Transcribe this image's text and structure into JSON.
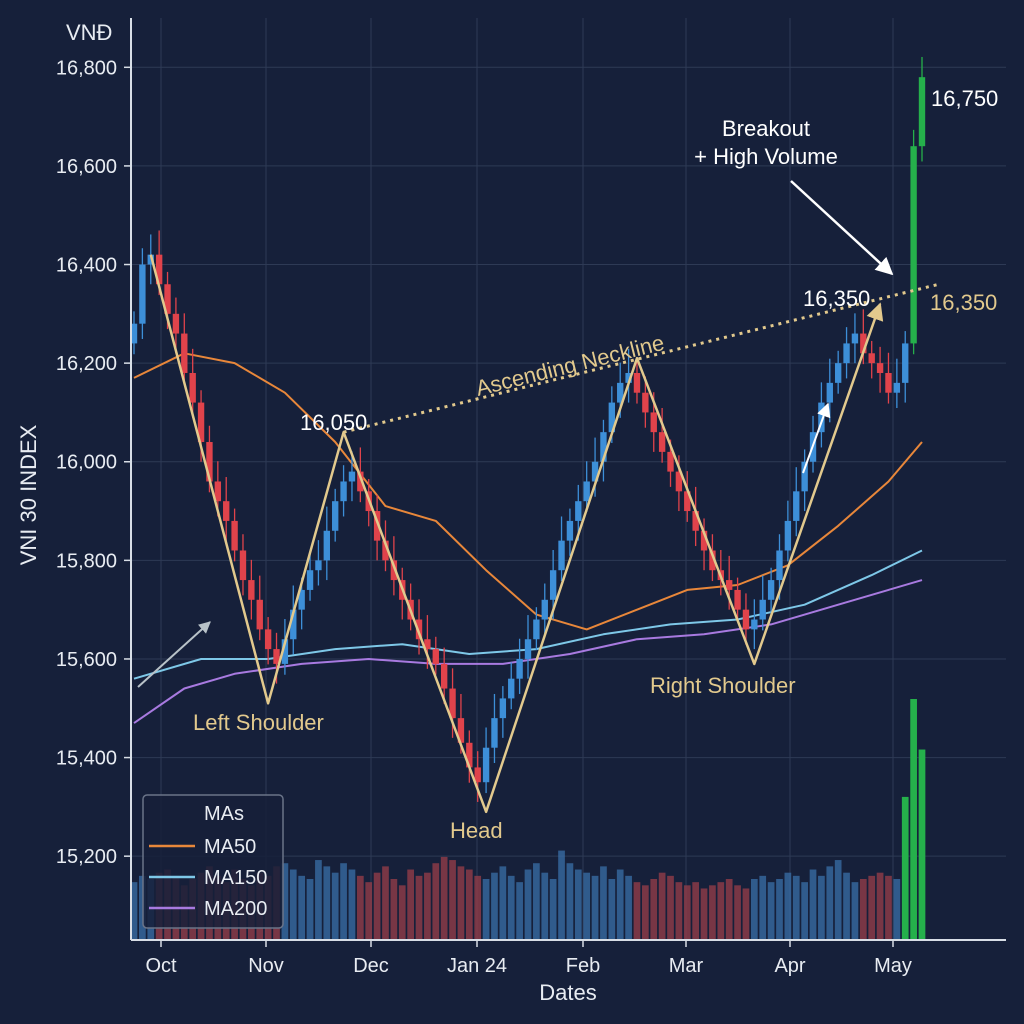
{
  "chart_data": {
    "type": "candlestick",
    "title": "",
    "ylabel": "VNI 30 INDEX",
    "yunit": "VNĐ",
    "xlabel": "Dates",
    "ylim": [
      15030,
      16900
    ],
    "yticks": [
      15200,
      15400,
      15600,
      15800,
      16000,
      16200,
      16400,
      16600,
      16800
    ],
    "ytick_labels": [
      "15,200",
      "15,400",
      "15,600",
      "15,800",
      "16,000",
      "16,200",
      "16,400",
      "16,600",
      "16,800"
    ],
    "xtick_labels": [
      "Oct",
      "Nov",
      "Dec",
      "Jan 24",
      "Feb",
      "Mar",
      "Apr",
      "May"
    ],
    "grid": true,
    "colors": {
      "up": "#3d8fd8",
      "down": "#e0434b",
      "breakout": "#25b04b",
      "pattern": "#e2c98d",
      "ma50": "#e8873a",
      "ma150": "#7ec8e8",
      "ma200": "#a87ae0"
    },
    "candles_close": [
      16280,
      16400,
      16420,
      16360,
      16300,
      16260,
      16180,
      16120,
      16040,
      15960,
      15920,
      15880,
      15820,
      15760,
      15720,
      15660,
      15620,
      15590,
      15640,
      15700,
      15740,
      15780,
      15800,
      15860,
      15920,
      15960,
      15980,
      15940,
      15900,
      15840,
      15800,
      15760,
      15720,
      15680,
      15640,
      15620,
      15590,
      15540,
      15480,
      15430,
      15380,
      15350,
      15420,
      15480,
      15520,
      15560,
      15600,
      15640,
      15680,
      15720,
      15780,
      15840,
      15880,
      15920,
      15960,
      16000,
      16060,
      16120,
      16160,
      16180,
      16140,
      16100,
      16060,
      16020,
      15980,
      15940,
      15900,
      15860,
      15820,
      15780,
      15760,
      15740,
      15700,
      15660,
      15680,
      15720,
      15760,
      15820,
      15880,
      15940,
      16000,
      16060,
      16120,
      16160,
      16200,
      16240,
      16260,
      16220,
      16200,
      16180,
      16140,
      16160,
      16240,
      16640,
      16780
    ],
    "ma50": {
      "name": "MA50",
      "points": [
        [
          0,
          16170
        ],
        [
          6,
          16220
        ],
        [
          12,
          16200
        ],
        [
          18,
          16140
        ],
        [
          24,
          16040
        ],
        [
          30,
          15910
        ],
        [
          36,
          15880
        ],
        [
          42,
          15780
        ],
        [
          48,
          15690
        ],
        [
          54,
          15660
        ],
        [
          60,
          15700
        ],
        [
          66,
          15740
        ],
        [
          72,
          15750
        ],
        [
          78,
          15790
        ],
        [
          84,
          15870
        ],
        [
          90,
          15960
        ],
        [
          94,
          16040
        ]
      ]
    },
    "ma150": {
      "name": "MA150",
      "points": [
        [
          0,
          15560
        ],
        [
          8,
          15600
        ],
        [
          16,
          15600
        ],
        [
          24,
          15620
        ],
        [
          32,
          15630
        ],
        [
          40,
          15610
        ],
        [
          48,
          15620
        ],
        [
          56,
          15650
        ],
        [
          64,
          15670
        ],
        [
          72,
          15680
        ],
        [
          80,
          15710
        ],
        [
          88,
          15770
        ],
        [
          94,
          15820
        ]
      ]
    },
    "ma200": {
      "name": "MA200",
      "points": [
        [
          0,
          15470
        ],
        [
          6,
          15540
        ],
        [
          12,
          15570
        ],
        [
          20,
          15590
        ],
        [
          28,
          15600
        ],
        [
          36,
          15590
        ],
        [
          44,
          15590
        ],
        [
          52,
          15610
        ],
        [
          60,
          15640
        ],
        [
          68,
          15650
        ],
        [
          76,
          15670
        ],
        [
          84,
          15710
        ],
        [
          90,
          15740
        ],
        [
          94,
          15760
        ]
      ]
    },
    "pattern_points": [
      [
        2,
        16420
      ],
      [
        16,
        15510
      ],
      [
        25,
        16060
      ],
      [
        42,
        15290
      ],
      [
        60,
        16210
      ],
      [
        74,
        15590
      ],
      [
        89,
        16320
      ]
    ],
    "neckline": {
      "from": [
        25,
        16060
      ],
      "to": [
        96,
        16360
      ],
      "label": "Ascending Neckline"
    },
    "volume": [
      18,
      20,
      19,
      21,
      22,
      20,
      17,
      19,
      21,
      23,
      20,
      18,
      22,
      19,
      17,
      21,
      20,
      23,
      24,
      22,
      20,
      19,
      25,
      23,
      21,
      24,
      22,
      20,
      18,
      21,
      23,
      19,
      17,
      22,
      20,
      21,
      24,
      26,
      25,
      23,
      22,
      20,
      19,
      21,
      23,
      20,
      18,
      22,
      24,
      21,
      19,
      28,
      24,
      22,
      21,
      20,
      23,
      19,
      22,
      20,
      18,
      17,
      19,
      21,
      20,
      18,
      17,
      18,
      16,
      17,
      18,
      19,
      17,
      16,
      19,
      20,
      18,
      19,
      21,
      20,
      18,
      22,
      20,
      23,
      25,
      21,
      18,
      19,
      20,
      21,
      20,
      19,
      45,
      76,
      60
    ]
  },
  "annotations": {
    "peak_left": "16,050",
    "peak_right": "16,350",
    "neckline_value": "16,350",
    "breakout_value": "16,750",
    "left_shoulder": "Left Shoulder",
    "head": "Head",
    "right_shoulder": "Right Shoulder",
    "breakout_line1": "Breakout",
    "breakout_line2": "+ High Volume"
  },
  "legend": {
    "title": "MAs",
    "items": [
      "MA50",
      "MA150",
      "MA200"
    ]
  }
}
